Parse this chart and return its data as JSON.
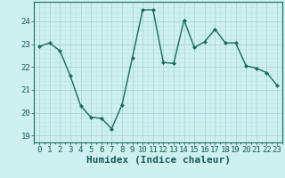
{
  "x": [
    0,
    1,
    2,
    3,
    4,
    5,
    6,
    7,
    8,
    9,
    10,
    11,
    12,
    13,
    14,
    15,
    16,
    17,
    18,
    19,
    20,
    21,
    22,
    23
  ],
  "y": [
    22.9,
    23.05,
    22.7,
    21.6,
    20.3,
    19.8,
    19.75,
    19.3,
    20.35,
    22.4,
    24.5,
    24.5,
    22.2,
    22.15,
    24.05,
    22.85,
    23.1,
    23.65,
    23.05,
    23.05,
    22.05,
    21.95,
    21.75,
    21.2
  ],
  "line_color": "#1a6b5a",
  "marker": "D",
  "marker_size": 2.0,
  "bg_color": "#cff0f0",
  "grid_major_color": "#aad4d4",
  "grid_minor_color": "#bce3e3",
  "xlabel": "Humidex (Indice chaleur)",
  "ylim": [
    18.7,
    24.85
  ],
  "xlim": [
    -0.5,
    23.5
  ],
  "yticks": [
    19,
    20,
    21,
    22,
    23,
    24
  ],
  "xticks": [
    0,
    1,
    2,
    3,
    4,
    5,
    6,
    7,
    8,
    9,
    10,
    11,
    12,
    13,
    14,
    15,
    16,
    17,
    18,
    19,
    20,
    21,
    22,
    23
  ],
  "tick_fontsize": 6.5,
  "xlabel_fontsize": 8,
  "linewidth": 1.0
}
